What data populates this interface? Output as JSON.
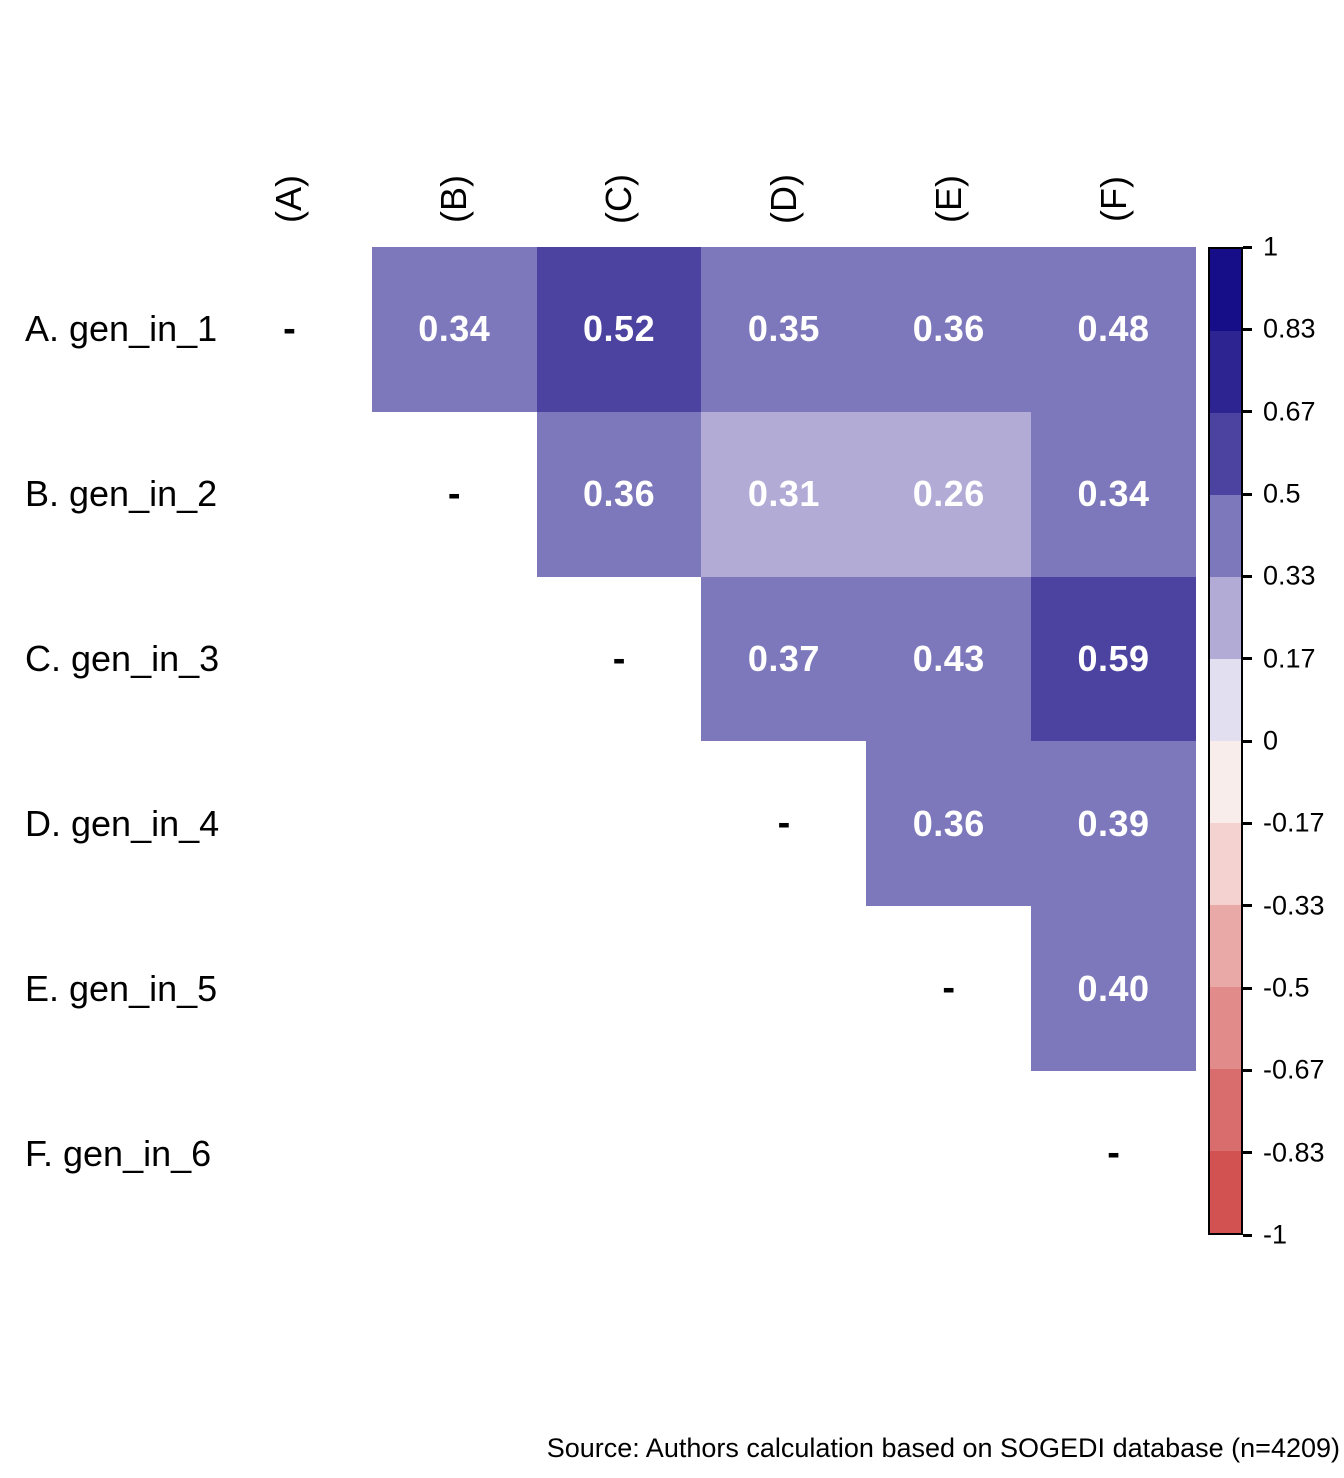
{
  "figure": {
    "source_note": "Source: Authors calculation based on SOGEDI database (n=4209)"
  },
  "matrix": {
    "row_labels": [
      "A. gen_in_1",
      "B. gen_in_2",
      "C. gen_in_3",
      "D. gen_in_4",
      "E. gen_in_5",
      "F. gen_in_6"
    ],
    "col_labels": [
      "(A)",
      "(B)",
      "(C)",
      "(D)",
      "(E)",
      "(F)"
    ],
    "diagonal_marker": "-"
  },
  "colorbar": {
    "tick_labels": [
      "1",
      "0.83",
      "0.67",
      "0.5",
      "0.33",
      "0.17",
      "0",
      "-0.17",
      "-0.33",
      "-0.5",
      "-0.67",
      "-0.83",
      "-1"
    ],
    "segment_colors_top_to_bottom": [
      "#150e88",
      "#2d2492",
      "#4c43a1",
      "#7d78bb",
      "#b1abd6",
      "#e2e0f0",
      "#f9edeb",
      "#f4d2cf",
      "#e9a9a7",
      "#e18b8a",
      "#d96c6c",
      "#d25151"
    ]
  },
  "colors": {
    "background": "#ffffff",
    "cell_value_text": "#ffffff",
    "diagonal_text": "#000000",
    "bin_0.17_to_0.33": "#b1abd6",
    "bin_0.33_to_0.5": "#7d78bb",
    "bin_0.5_to_0.67": "#4c43a1"
  },
  "chart_data": {
    "type": "heatmap",
    "title": "",
    "rows": [
      "A. gen_in_1",
      "B. gen_in_2",
      "C. gen_in_3",
      "D. gen_in_4",
      "E. gen_in_5",
      "F. gen_in_6"
    ],
    "cols": [
      "(A)",
      "(B)",
      "(C)",
      "(D)",
      "(E)",
      "(F)"
    ],
    "values": [
      [
        null,
        0.34,
        0.52,
        0.35,
        0.36,
        0.48
      ],
      [
        null,
        null,
        0.36,
        0.31,
        0.26,
        0.34
      ],
      [
        null,
        null,
        null,
        0.37,
        0.43,
        0.59
      ],
      [
        null,
        null,
        null,
        null,
        0.36,
        0.39
      ],
      [
        null,
        null,
        null,
        null,
        null,
        0.4
      ],
      [
        null,
        null,
        null,
        null,
        null,
        null
      ]
    ],
    "diagonal_marker": "-",
    "scale_range": [
      -1,
      1
    ],
    "n_color_bins": 12,
    "colorbar_ticks": [
      1,
      0.83,
      0.67,
      0.5,
      0.33,
      0.17,
      0,
      -0.17,
      -0.33,
      -0.5,
      -0.67,
      -0.83,
      -1
    ],
    "legend_position": "right",
    "grid": false,
    "source_note": "Source: Authors calculation based on SOGEDI database (n=4209)"
  }
}
